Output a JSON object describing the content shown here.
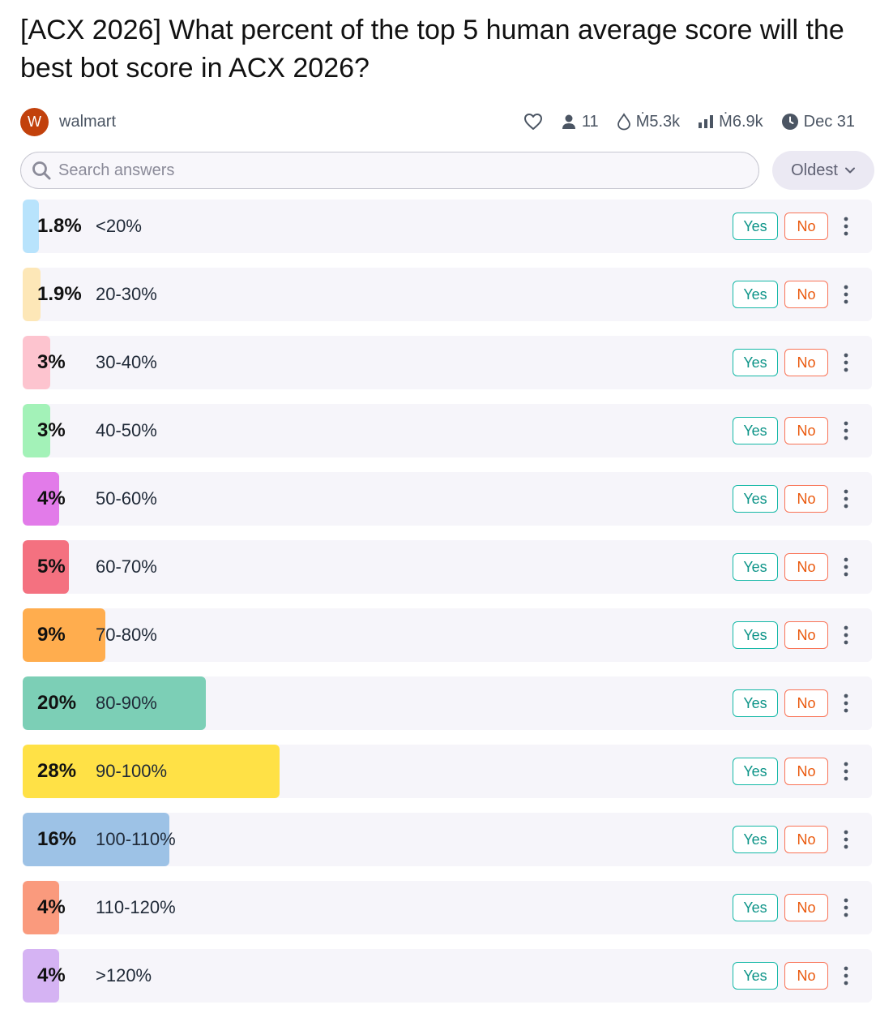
{
  "title": "[ACX 2026] What percent of the top 5 human average score will the best bot score in ACX 2026?",
  "creator": {
    "initial": "W",
    "name": "walmart"
  },
  "stats": {
    "traders": "11",
    "liquidity": "Ṁ5.3k",
    "volume": "Ṁ6.9k",
    "close_date": "Dec 31"
  },
  "search": {
    "placeholder": "Search answers",
    "value": ""
  },
  "sort": {
    "label": "Oldest"
  },
  "actions": {
    "yes_label": "Yes",
    "no_label": "No"
  },
  "answers": [
    {
      "pct_text": "1.8%",
      "label": "<20%",
      "prob": 0.018,
      "color": "#b8e3fc"
    },
    {
      "pct_text": "1.9%",
      "label": "20-30%",
      "prob": 0.019,
      "color": "#fde7b7"
    },
    {
      "pct_text": "3%",
      "label": "30-40%",
      "prob": 0.03,
      "color": "#fdc4cf"
    },
    {
      "pct_text": "3%",
      "label": "40-50%",
      "prob": 0.03,
      "color": "#a3f2b8"
    },
    {
      "pct_text": "4%",
      "label": "50-60%",
      "prob": 0.04,
      "color": "#e27be9"
    },
    {
      "pct_text": "5%",
      "label": "60-70%",
      "prob": 0.05,
      "color": "#f47180"
    },
    {
      "pct_text": "9%",
      "label": "70-80%",
      "prob": 0.09,
      "color": "#ffad4e"
    },
    {
      "pct_text": "20%",
      "label": "80-90%",
      "prob": 0.2,
      "color": "#7ccfb6"
    },
    {
      "pct_text": "28%",
      "label": "90-100%",
      "prob": 0.28,
      "color": "#ffe146"
    },
    {
      "pct_text": "16%",
      "label": "100-110%",
      "prob": 0.16,
      "color": "#9dc2e6"
    },
    {
      "pct_text": "4%",
      "label": "110-120%",
      "prob": 0.04,
      "color": "#fa9a7d"
    },
    {
      "pct_text": "4%",
      "label": ">120%",
      "prob": 0.04,
      "color": "#d5b3f3"
    }
  ]
}
